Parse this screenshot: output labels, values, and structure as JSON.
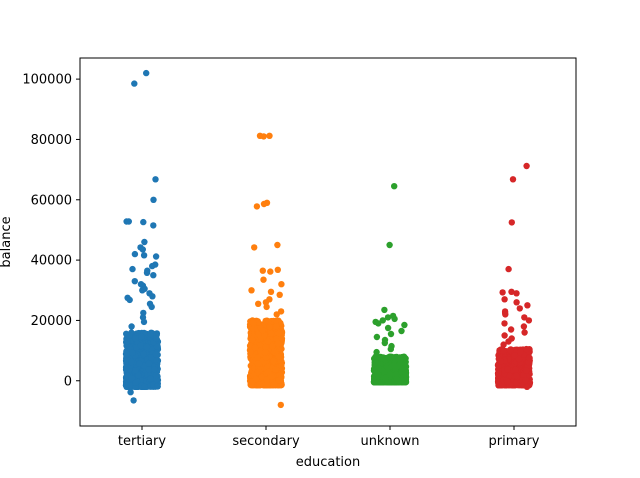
{
  "chart_data": {
    "type": "scatter",
    "subtype": "strip",
    "xlabel": "education",
    "ylabel": "balance",
    "categories": [
      "tertiary",
      "secondary",
      "unknown",
      "primary"
    ],
    "ylim": [
      -15000,
      107000
    ],
    "yticks": [
      0,
      20000,
      40000,
      60000,
      80000,
      100000
    ],
    "grid": false,
    "series": [
      {
        "color": "#1f77b4",
        "bulk_range": [
          -2000,
          16000
        ],
        "outliers": [
          102000,
          98500,
          66800,
          60000,
          52800,
          52800,
          52600,
          51500,
          46000,
          44200,
          43500,
          42000,
          41600,
          41200,
          38500,
          38000,
          37000,
          36500,
          35800,
          35000,
          33000,
          32000,
          31500,
          30500,
          30000,
          29000,
          28000,
          27500,
          26800,
          25500,
          24500,
          22500,
          21000,
          19500,
          18000,
          -6500,
          -3800
        ]
      },
      {
        "color": "#ff7f0e",
        "bulk_range": [
          -1500,
          20000
        ],
        "outliers": [
          81200,
          81200,
          81000,
          59000,
          58600,
          57800,
          45000,
          44200,
          36800,
          36500,
          36200,
          33500,
          32000,
          30000,
          29500,
          28500,
          27000,
          26000,
          25500,
          24500,
          23000,
          22000,
          -8000
        ]
      },
      {
        "color": "#2ca02c",
        "bulk_range": [
          -500,
          8000
        ],
        "outliers": [
          64500,
          45000,
          23500,
          21500,
          21000,
          20500,
          20000,
          19500,
          19000,
          18500,
          17500,
          16500,
          15500,
          14500,
          13500,
          12500,
          11500,
          10500,
          9500
        ]
      },
      {
        "color": "#d62728",
        "bulk_range": [
          -1500,
          10500
        ],
        "outliers": [
          71200,
          66800,
          52500,
          37000,
          29500,
          29300,
          29000,
          27000,
          26000,
          25000,
          24000,
          23000,
          22500,
          22000,
          21000,
          20000,
          19000,
          18000,
          17000,
          16000,
          15000,
          14000,
          13000,
          12000,
          -2000
        ]
      }
    ]
  }
}
